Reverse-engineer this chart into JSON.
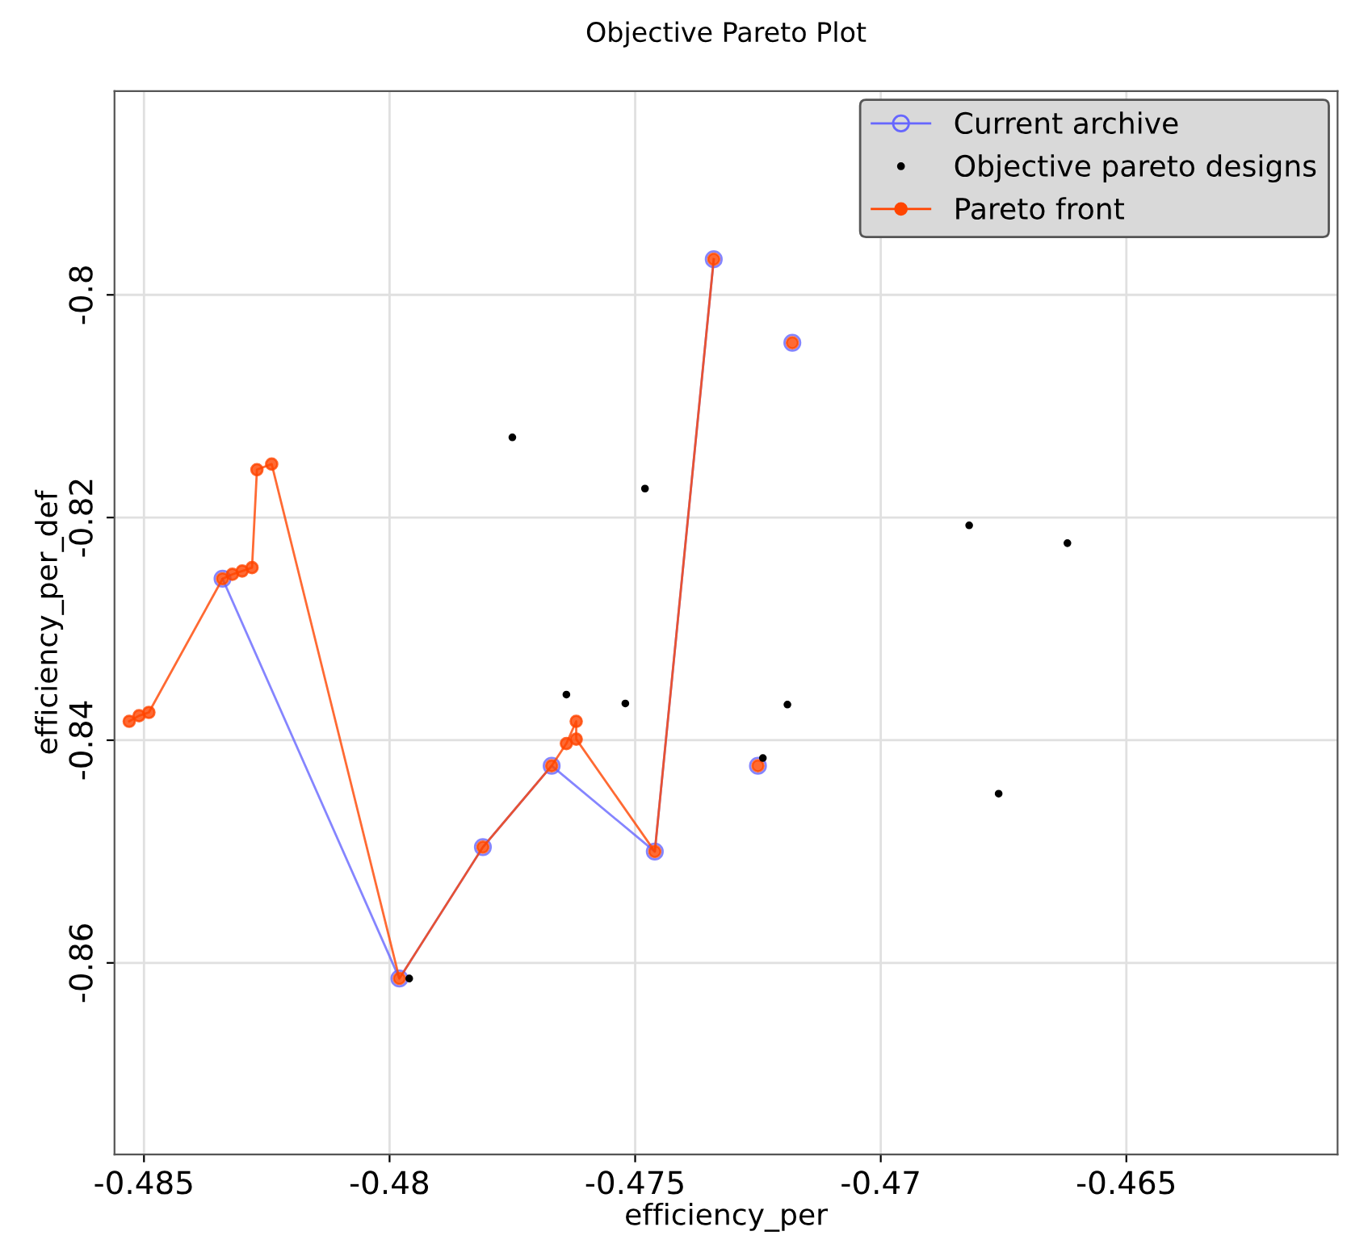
{
  "chart_data": {
    "type": "line",
    "title": "Objective Pareto Plot",
    "xlabel": "efficiency_per",
    "ylabel": "efficiency_per_def",
    "xlim": [
      -0.4856,
      -0.4607
    ],
    "ylim": [
      -0.8772,
      -0.7817
    ],
    "xticks": [
      -0.485,
      -0.48,
      -0.475,
      -0.47,
      -0.465
    ],
    "yticks": [
      -0.86,
      -0.84,
      -0.82,
      -0.8
    ],
    "grid": true,
    "legend": "top right",
    "series": [
      {
        "name": "Current archive",
        "color": "#6666ff",
        "marker": "circle",
        "x": [
          -0.4834,
          -0.4798,
          -0.4781,
          -0.4767,
          -0.4746,
          -0.4734,
          -0.4729,
          -0.4725,
          -0.4722,
          -0.4718
        ],
        "values": [
          -0.8255,
          -0.8614,
          -0.8496,
          -0.8423,
          -0.85,
          -0.7968,
          null,
          -0.8423,
          null,
          -0.8043
        ]
      },
      {
        "name": "Objective pareto designs",
        "type": "scatter",
        "color": "#000000",
        "marker": "circle",
        "x": [
          -0.4775,
          -0.4748,
          -0.4682,
          -0.4662,
          -0.4764,
          -0.4752,
          -0.4719,
          -0.4724,
          -0.4676,
          -0.4796
        ],
        "values": [
          -0.8128,
          -0.8174,
          -0.8207,
          -0.8223,
          -0.8359,
          -0.8367,
          -0.8368,
          -0.8416,
          -0.8448,
          -0.8614
        ]
      },
      {
        "name": "Pareto front",
        "color": "#ff4500",
        "marker": "circle",
        "x": [
          -0.4853,
          -0.4851,
          -0.4849,
          -0.4834,
          -0.4832,
          -0.483,
          -0.4828,
          -0.4827,
          -0.4824,
          -0.4798,
          -0.4781,
          -0.4767,
          -0.4764,
          -0.4762,
          -0.4762,
          -0.4746,
          -0.4734,
          -0.4732,
          -0.4725,
          -0.4724,
          -0.4718
        ],
        "values": [
          -0.8383,
          -0.8378,
          -0.8375,
          -0.8255,
          -0.8251,
          -0.8248,
          -0.8245,
          -0.8157,
          -0.8152,
          -0.8614,
          -0.8496,
          -0.8423,
          -0.8403,
          -0.8383,
          -0.8399,
          -0.85,
          -0.7968,
          null,
          -0.8423,
          null,
          -0.8043
        ]
      }
    ]
  }
}
